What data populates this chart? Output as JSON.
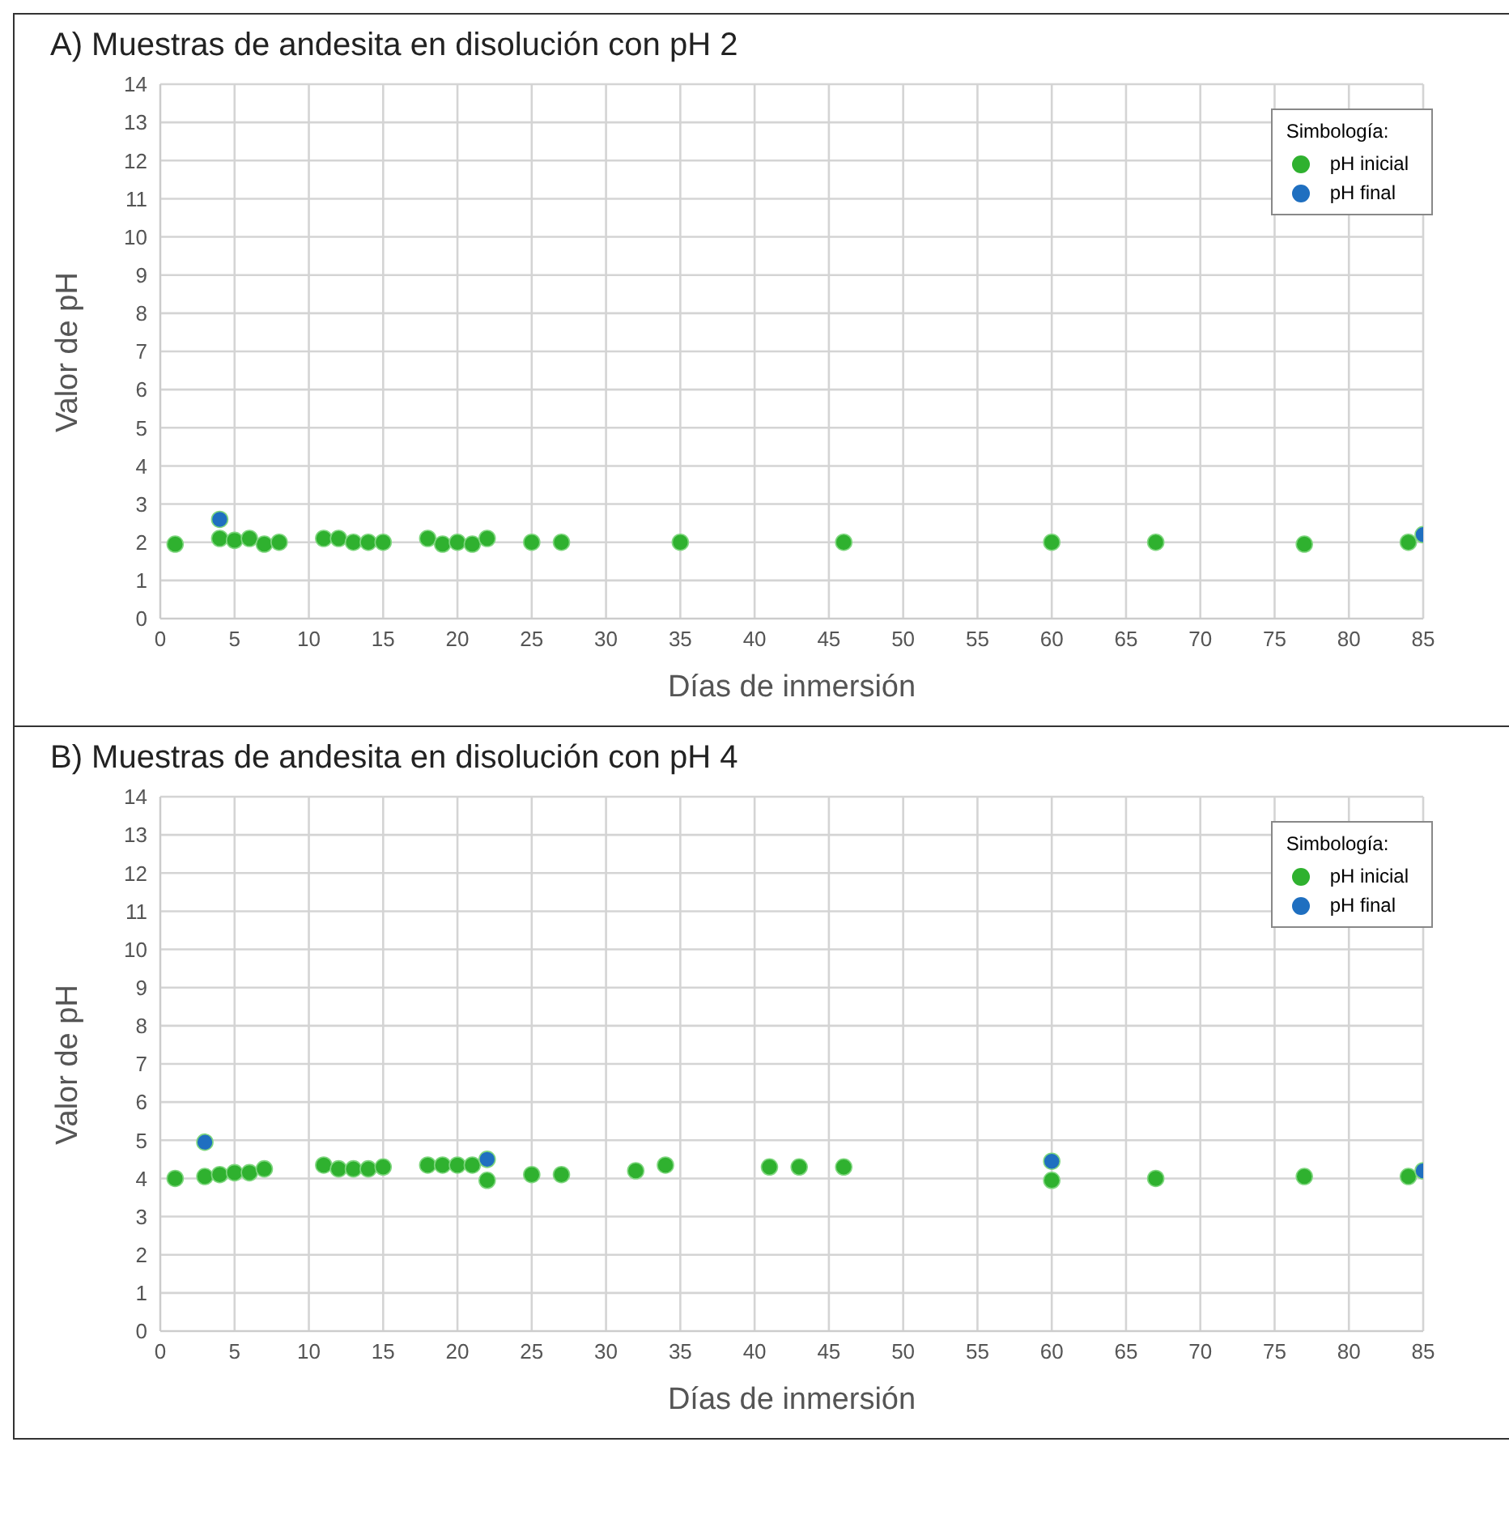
{
  "chart_data": [
    {
      "type": "scatter",
      "title": "A) Muestras de andesita en disolución con pH 2",
      "xlabel": "Días de inmersión",
      "ylabel": "Valor de pH",
      "legend_title": "Simbología:",
      "legend": "top right",
      "grid": true,
      "marker": "circle",
      "xlim": [
        0,
        85
      ],
      "xticks": [
        0,
        5,
        10,
        15,
        20,
        25,
        30,
        35,
        40,
        45,
        50,
        55,
        60,
        65,
        70,
        75,
        80,
        85
      ],
      "ylim": [
        0,
        14
      ],
      "yticks": [
        0,
        1,
        2,
        3,
        4,
        5,
        6,
        7,
        8,
        9,
        10,
        11,
        12,
        13,
        14
      ],
      "series": [
        {
          "name": "pH inicial",
          "color": "#2fb12f",
          "x": [
            1,
            4,
            5,
            6,
            7,
            8,
            11,
            12,
            13,
            14,
            15,
            18,
            19,
            20,
            21,
            22,
            25,
            27,
            35,
            46,
            60,
            67,
            77,
            84
          ],
          "values": [
            1.95,
            2.1,
            2.05,
            2.1,
            1.95,
            2.0,
            2.1,
            2.1,
            2.0,
            2.0,
            2.0,
            2.1,
            1.95,
            2.0,
            1.95,
            2.1,
            2.0,
            2.0,
            2.0,
            2.0,
            2.0,
            2.0,
            1.95,
            2.0
          ]
        },
        {
          "name": "pH final",
          "color": "#1f6fc0",
          "x": [
            4,
            85
          ],
          "values": [
            2.6,
            2.2
          ]
        }
      ]
    },
    {
      "type": "scatter",
      "title": "B) Muestras de andesita en disolución con pH 4",
      "xlabel": "Días de inmersión",
      "ylabel": "Valor de pH",
      "legend_title": "Simbología:",
      "legend": "top right",
      "grid": true,
      "marker": "circle",
      "xlim": [
        0,
        85
      ],
      "xticks": [
        0,
        5,
        10,
        15,
        20,
        25,
        30,
        35,
        40,
        45,
        50,
        55,
        60,
        65,
        70,
        75,
        80,
        85
      ],
      "ylim": [
        0,
        14
      ],
      "yticks": [
        0,
        1,
        2,
        3,
        4,
        5,
        6,
        7,
        8,
        9,
        10,
        11,
        12,
        13,
        14
      ],
      "series": [
        {
          "name": "pH inicial",
          "color": "#2fb12f",
          "x": [
            1,
            3,
            4,
            5,
            6,
            7,
            11,
            12,
            13,
            14,
            15,
            18,
            19,
            20,
            21,
            22,
            25,
            27,
            32,
            34,
            41,
            43,
            46,
            60,
            67,
            77,
            84
          ],
          "values": [
            4.0,
            4.05,
            4.1,
            4.15,
            4.15,
            4.25,
            4.35,
            4.25,
            4.25,
            4.25,
            4.3,
            4.35,
            4.35,
            4.35,
            4.35,
            3.95,
            4.1,
            4.1,
            4.2,
            4.35,
            4.3,
            4.3,
            4.3,
            3.95,
            4.0,
            4.05,
            4.05
          ]
        },
        {
          "name": "pH final",
          "color": "#1f6fc0",
          "x": [
            3,
            22,
            60,
            85
          ],
          "values": [
            4.95,
            4.5,
            4.45,
            4.2
          ]
        }
      ]
    }
  ]
}
